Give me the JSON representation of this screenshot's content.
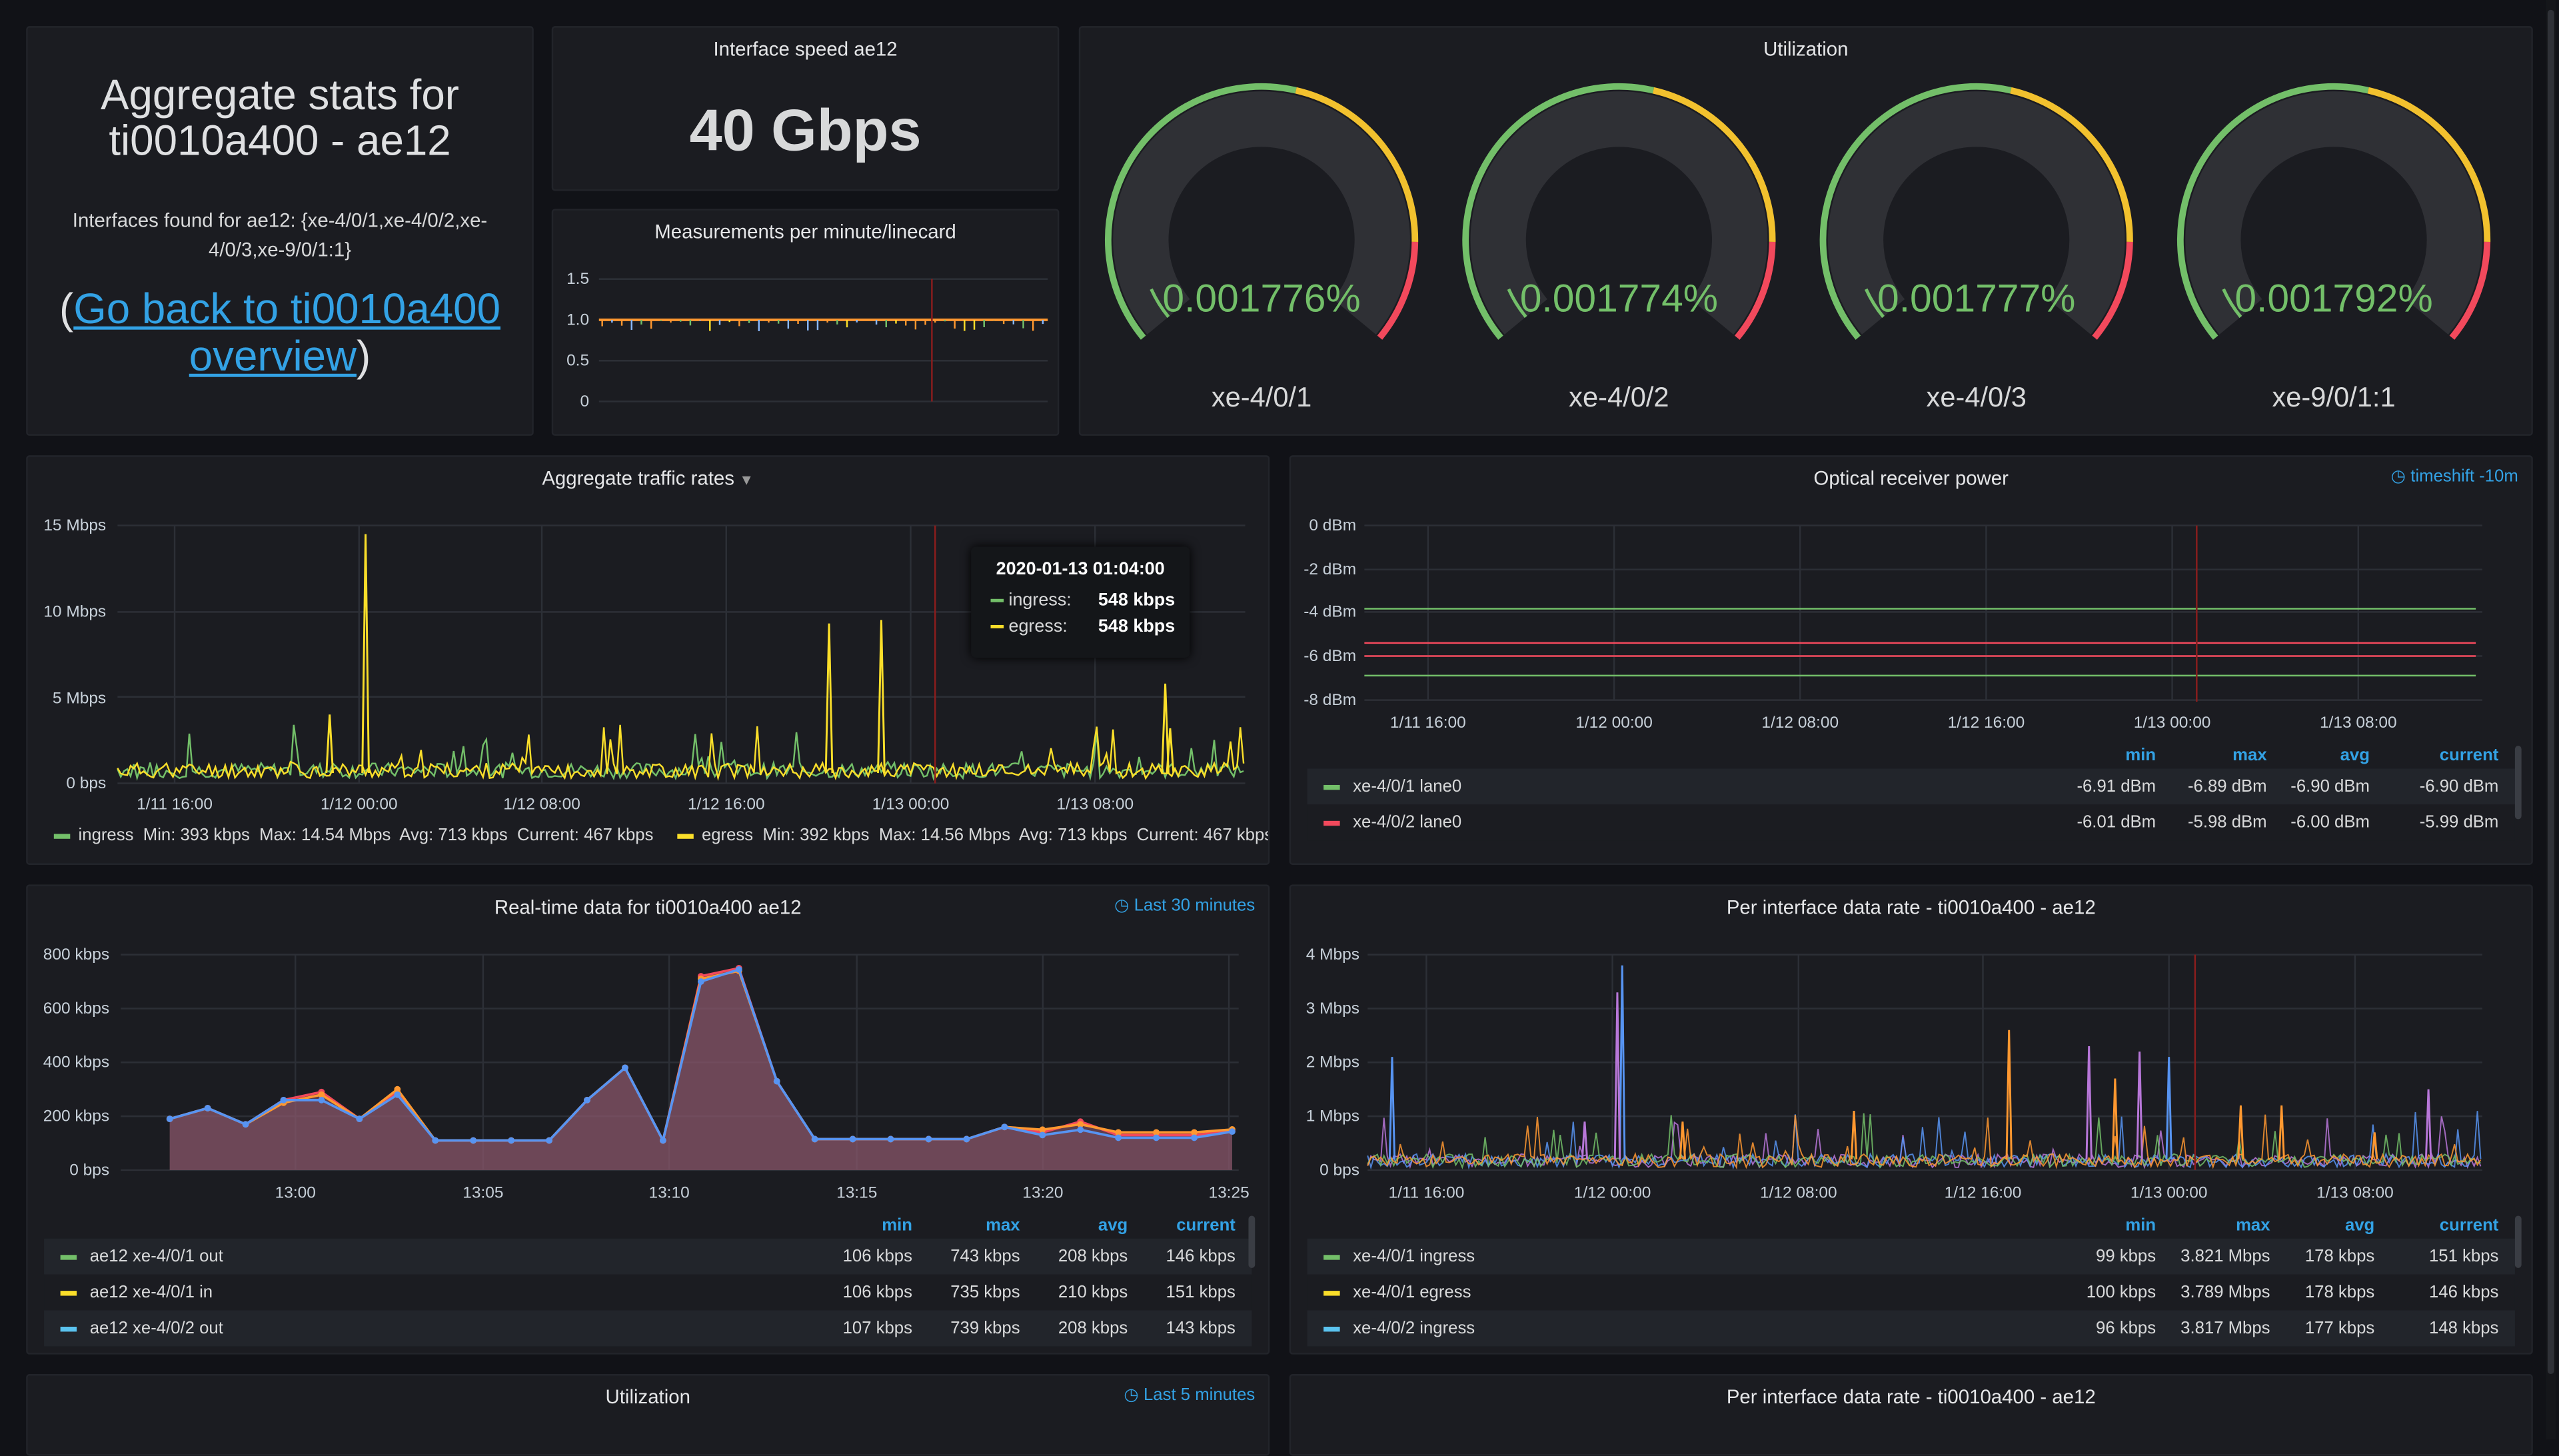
{
  "colors": {
    "green": "#73bf69",
    "yellow": "#fade2a",
    "red": "#f2495c",
    "blue": "#5794f2",
    "orange": "#ff9830",
    "cyan": "#8ab8ff",
    "purple": "#b877d9"
  },
  "info_panel": {
    "title_line1": "Aggregate stats for",
    "title_line2": "ti0010a400 - ae12",
    "interfaces_line1": "Interfaces found for ae12: {xe-4/0/1,xe-4/0/2,xe-",
    "interfaces_line2": "4/0/3,xe-9/0/1:1}",
    "link_open": "(",
    "link_text_line1": "Go back to ti0010a400",
    "link_text_line2": "overview",
    "link_close": ")"
  },
  "speed_panel": {
    "title": "Interface speed ae12",
    "value": "40 Gbps"
  },
  "measurements_panel": {
    "title": "Measurements per minute/linecard",
    "y_ticks": [
      "1.5",
      "1.0",
      "0.5",
      "0"
    ]
  },
  "utilization_panel": {
    "title": "Utilization",
    "gauges": [
      {
        "value_text": "0.001776%",
        "label": "xe-4/0/1",
        "value": 0.001776
      },
      {
        "value_text": "0.001774%",
        "label": "xe-4/0/2",
        "value": 0.001774
      },
      {
        "value_text": "0.001777%",
        "label": "xe-4/0/3",
        "value": 0.001777
      },
      {
        "value_text": "0.001792%",
        "label": "xe-9/0/1:1",
        "value": 0.001792
      }
    ]
  },
  "traffic_panel": {
    "title": "Aggregate traffic rates",
    "dropdown_icon": "caret-down-icon",
    "y_ticks": [
      "15 Mbps",
      "10 Mbps",
      "5 Mbps",
      "0 bps"
    ],
    "x_ticks": [
      "1/11 16:00",
      "1/12 00:00",
      "1/12 08:00",
      "1/12 16:00",
      "1/13 00:00",
      "1/13 08:00"
    ],
    "legend": {
      "ingress": {
        "name": "ingress",
        "stats": "Min: 393 kbps  Max: 14.54 Mbps  Avg: 713 kbps  Current: 467 kbps"
      },
      "egress": {
        "name": "egress",
        "stats": "Min: 392 kbps  Max: 14.56 Mbps  Avg: 713 kbps  Current: 467 kbps"
      }
    },
    "tooltip": {
      "time": "2020-01-13 01:04:00",
      "rows": [
        {
          "name": "ingress:",
          "value": "548 kbps"
        },
        {
          "name": "egress:",
          "value": "548 kbps"
        }
      ]
    }
  },
  "optical_panel": {
    "title": "Optical receiver power",
    "timeshift": "timeshift -10m",
    "y_ticks": [
      "0 dBm",
      "-2 dBm",
      "-4 dBm",
      "-6 dBm",
      "-8 dBm"
    ],
    "x_ticks": [
      "1/11 16:00",
      "1/12 00:00",
      "1/12 08:00",
      "1/12 16:00",
      "1/13 00:00",
      "1/13 08:00"
    ],
    "headers": [
      "min",
      "max",
      "avg",
      "current"
    ],
    "rows": [
      {
        "name": "xe-4/0/1 lane0",
        "min": "-6.91 dBm",
        "max": "-6.89 dBm",
        "avg": "-6.90 dBm",
        "current": "-6.90 dBm"
      },
      {
        "name": "xe-4/0/2 lane0",
        "min": "-6.01 dBm",
        "max": "-5.98 dBm",
        "avg": "-6.00 dBm",
        "current": "-5.99 dBm"
      }
    ]
  },
  "realtime_panel": {
    "title": "Real-time data for ti0010a400 ae12",
    "timeshift": "Last 30 minutes",
    "y_ticks": [
      "800 kbps",
      "600 kbps",
      "400 kbps",
      "200 kbps",
      "0 bps"
    ],
    "x_ticks": [
      "13:00",
      "13:05",
      "13:10",
      "13:15",
      "13:20",
      "13:25"
    ],
    "headers": [
      "min",
      "max",
      "avg",
      "current"
    ],
    "rows": [
      {
        "name": "ae12 xe-4/0/1 out",
        "min": "106 kbps",
        "max": "743 kbps",
        "avg": "208 kbps",
        "current": "146 kbps"
      },
      {
        "name": "ae12 xe-4/0/1 in",
        "min": "106 kbps",
        "max": "735 kbps",
        "avg": "210 kbps",
        "current": "151 kbps"
      },
      {
        "name": "ae12 xe-4/0/2 out",
        "min": "107 kbps",
        "max": "739 kbps",
        "avg": "208 kbps",
        "current": "143 kbps"
      }
    ]
  },
  "perif_panel": {
    "title": "Per interface data rate - ti0010a400 - ae12",
    "y_ticks": [
      "4 Mbps",
      "3 Mbps",
      "2 Mbps",
      "1 Mbps",
      "0 bps"
    ],
    "x_ticks": [
      "1/11 16:00",
      "1/12 00:00",
      "1/12 08:00",
      "1/12 16:00",
      "1/13 00:00",
      "1/13 08:00"
    ],
    "headers": [
      "min",
      "max",
      "avg",
      "current"
    ],
    "rows": [
      {
        "name": "xe-4/0/1 ingress",
        "min": "99 kbps",
        "max": "3.821 Mbps",
        "avg": "178 kbps",
        "current": "151 kbps"
      },
      {
        "name": "xe-4/0/1 egress",
        "min": "100 kbps",
        "max": "3.789 Mbps",
        "avg": "178 kbps",
        "current": "146 kbps"
      },
      {
        "name": "xe-4/0/2 ingress",
        "min": "96 kbps",
        "max": "3.817 Mbps",
        "avg": "177 kbps",
        "current": "148 kbps"
      }
    ]
  },
  "bottom_panels": {
    "left": {
      "title": "Utilization",
      "timeshift": "Last 5 minutes"
    },
    "right": {
      "title": "Per interface data rate - ti0010a400 - ae12"
    }
  },
  "chart_data": [
    {
      "type": "line",
      "title": "Aggregate traffic rates",
      "xlabel": "",
      "ylabel": "",
      "x": [
        "1/11 16:00",
        "1/12 00:00",
        "1/12 08:00",
        "1/12 16:00",
        "1/13 00:00",
        "1/13 08:00"
      ],
      "series": [
        {
          "name": "ingress",
          "values": [
            0.7,
            0.7,
            0.7,
            0.7,
            0.7,
            0.7
          ]
        },
        {
          "name": "egress",
          "values": [
            0.7,
            0.7,
            0.7,
            0.7,
            0.7,
            0.7
          ]
        }
      ],
      "peaks_mbps": [
        {
          "x": "1/12 00:00",
          "value": 14.5
        },
        {
          "x": "1/12 20:30",
          "value": 9.3
        },
        {
          "x": "1/12 23:00",
          "value": 9.5
        },
        {
          "x": "1/13 10:30",
          "value": 5.8
        }
      ],
      "ylim": [
        0,
        15
      ]
    },
    {
      "type": "line",
      "title": "Optical receiver power",
      "series": [
        {
          "name": "xe-4/0/1 lane0",
          "values": [
            -6.9,
            -6.9
          ]
        },
        {
          "name": "xe-4/0/2 lane0",
          "values": [
            -5.99,
            -5.99
          ]
        },
        {
          "name": "unlabeled-green",
          "values": [
            -3.9,
            -3.9
          ]
        },
        {
          "name": "unlabeled-red",
          "values": [
            -5.5,
            -5.5
          ]
        }
      ],
      "ylim": [
        -8,
        0
      ]
    },
    {
      "type": "area",
      "title": "Real-time data for ti0010a400 ae12",
      "x": [
        "12:57",
        "12:58",
        "12:59",
        "13:00",
        "13:01",
        "13:02",
        "13:03",
        "13:04",
        "13:05",
        "13:06",
        "13:07",
        "13:08",
        "13:09",
        "13:10",
        "13:11",
        "13:12",
        "13:13",
        "13:14",
        "13:15",
        "13:16",
        "13:17",
        "13:18",
        "13:19",
        "13:20",
        "13:21",
        "13:22",
        "13:23",
        "13:24",
        "13:25"
      ],
      "series": [
        {
          "name": "ae12 xe-4/0/1 out",
          "values": [
            190,
            230,
            170,
            260,
            290,
            190,
            290,
            110,
            110,
            110,
            110,
            260,
            380,
            110,
            720,
            750,
            330,
            115,
            115,
            115,
            115,
            115,
            160,
            140,
            180,
            130,
            130,
            130,
            146
          ]
        },
        {
          "name": "ae12 xe-4/0/1 in",
          "values": [
            190,
            230,
            170,
            250,
            280,
            190,
            300,
            110,
            110,
            110,
            110,
            260,
            380,
            110,
            710,
            740,
            330,
            115,
            115,
            115,
            115,
            115,
            160,
            150,
            170,
            140,
            140,
            140,
            151
          ]
        },
        {
          "name": "ae12 xe-4/0/2 out",
          "values": [
            190,
            230,
            170,
            260,
            260,
            190,
            280,
            110,
            110,
            110,
            110,
            260,
            380,
            110,
            700,
            745,
            330,
            115,
            115,
            115,
            115,
            115,
            160,
            130,
            150,
            120,
            120,
            120,
            143
          ]
        }
      ],
      "ylim": [
        0,
        800
      ]
    },
    {
      "type": "line",
      "title": "Per interface data rate - ti0010a400 - ae12",
      "series": [
        {
          "name": "xe-4/0/1 ingress",
          "values": [
            0.18
          ]
        },
        {
          "name": "xe-4/0/1 egress",
          "values": [
            0.18
          ]
        },
        {
          "name": "xe-4/0/2 ingress",
          "values": [
            0.18
          ]
        }
      ],
      "peaks_mbps": [
        {
          "x": "1/12 00:30",
          "value": 3.8
        },
        {
          "x": "1/12 17:00",
          "value": 2.6
        },
        {
          "x": "1/12 20:00",
          "value": 2.4
        },
        {
          "x": "1/12 23:00",
          "value": 2.2
        }
      ],
      "ylim": [
        0,
        4
      ]
    },
    {
      "type": "line",
      "title": "Measurements per minute/linecard",
      "series": [
        {
          "name": "",
          "values": [
            1.0
          ]
        }
      ],
      "ylim": [
        0,
        1.5
      ]
    }
  ]
}
